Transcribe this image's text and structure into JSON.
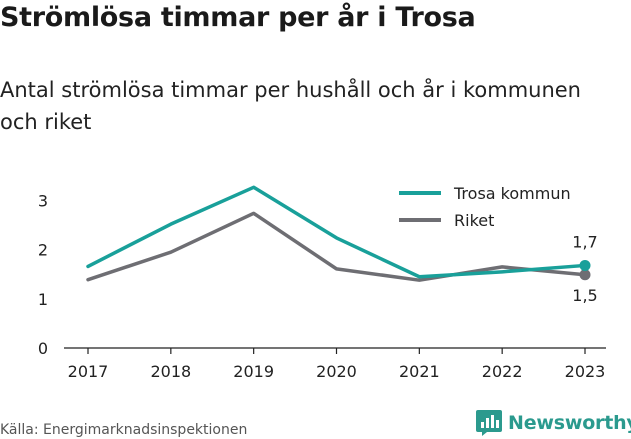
{
  "title": "Strömlösa timmar per år i Trosa",
  "subtitle": "Antal strömlösa timmar per hushåll och år i kommunen och riket",
  "source": "Källa: Energimarknadsinspektionen",
  "brand": {
    "name": "Newsworthy",
    "icon": "newsworthy-logo-icon",
    "color": "#2b9a8e"
  },
  "chart_data": {
    "type": "line",
    "title": "",
    "xlabel": "",
    "ylabel": "",
    "categories": [
      "2017",
      "2018",
      "2019",
      "2020",
      "2021",
      "2022",
      "2023"
    ],
    "ylim": [
      0,
      3.5
    ],
    "yticks": [
      0,
      1,
      2,
      3
    ],
    "grid": false,
    "legend": "top-right",
    "series": [
      {
        "name": "Trosa kommun",
        "color": "#19a09a",
        "values": [
          1.66,
          2.52,
          3.27,
          2.24,
          1.45,
          1.55,
          1.68
        ],
        "end_label": "1,7"
      },
      {
        "name": "Riket",
        "color": "#6e6e73",
        "values": [
          1.39,
          1.95,
          2.74,
          1.61,
          1.38,
          1.65,
          1.49
        ],
        "end_label": "1,5"
      }
    ]
  }
}
